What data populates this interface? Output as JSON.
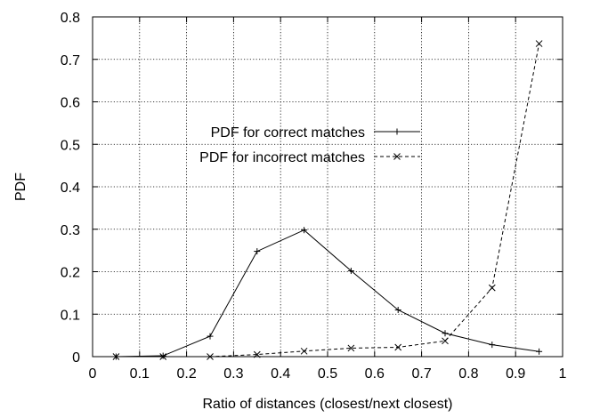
{
  "chart_data": {
    "type": "line",
    "title": "",
    "xlabel": "Ratio of distances (closest/next closest)",
    "ylabel": "PDF",
    "xlim": [
      0,
      1
    ],
    "ylim": [
      0,
      0.8
    ],
    "x_ticks": [
      0,
      0.1,
      0.2,
      0.3,
      0.4,
      0.5,
      0.6,
      0.7,
      0.8,
      0.9,
      1
    ],
    "x_tick_labels": [
      "0",
      "0.1",
      "0.2",
      "0.3",
      "0.4",
      "0.5",
      "0.6",
      "0.7",
      "0.8",
      "0.9",
      "1"
    ],
    "y_ticks": [
      0,
      0.1,
      0.2,
      0.3,
      0.4,
      0.5,
      0.6,
      0.7,
      0.8
    ],
    "y_tick_labels": [
      "0",
      "0.1",
      "0.2",
      "0.3",
      "0.4",
      "0.5",
      "0.6",
      "0.7",
      "0.8"
    ],
    "grid": true,
    "grid_style": "dotted",
    "legend_position": "upper-middle",
    "x": [
      0.05,
      0.15,
      0.25,
      0.35,
      0.45,
      0.55,
      0.65,
      0.75,
      0.85,
      0.95
    ],
    "series": [
      {
        "name": "PDF for correct matches",
        "values": [
          0.0,
          0.002,
          0.048,
          0.248,
          0.298,
          0.202,
          0.11,
          0.055,
          0.028,
          0.012
        ],
        "line_style": "solid",
        "marker": "plus",
        "color": "#000000"
      },
      {
        "name": "PDF for incorrect matches",
        "values": [
          0.0,
          0.0,
          0.0,
          0.005,
          0.013,
          0.02,
          0.022,
          0.037,
          0.162,
          0.737
        ],
        "line_style": "dashed",
        "marker": "cross",
        "color": "#000000"
      }
    ]
  }
}
